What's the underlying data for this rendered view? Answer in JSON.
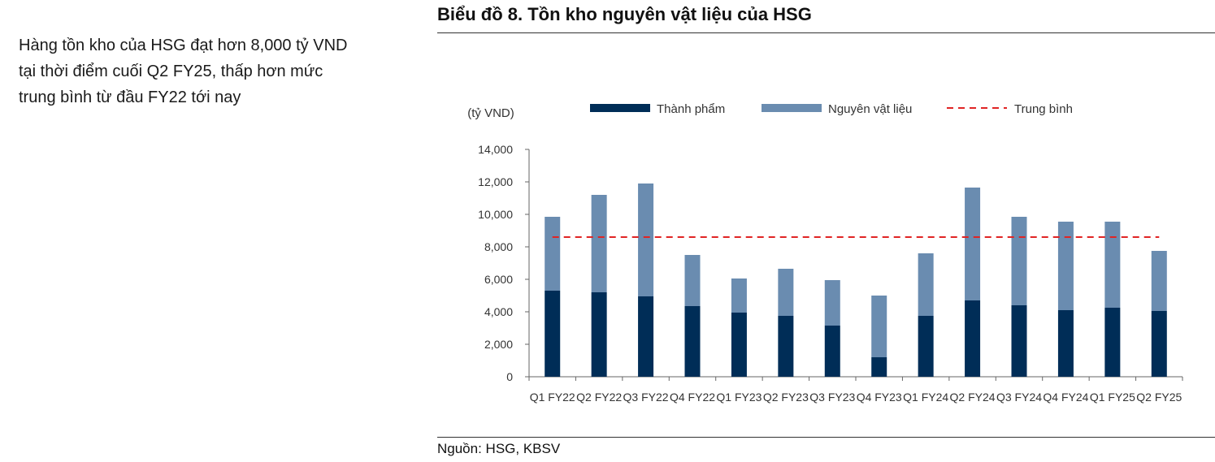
{
  "commentary": {
    "lines": [
      "Hàng tồn kho của HSG đạt hơn 8,000 tỷ VND",
      "tại thời điểm cuối Q2 FY25, thấp hơn mức",
      "trung bình từ đầu FY22 tới nay"
    ]
  },
  "chart_title": "Biểu đồ 8. Tồn kho nguyên vật liệu của HSG",
  "source": "Nguồn: HSG, KBSV",
  "chart_data": {
    "type": "bar",
    "stacked": true,
    "unit_label": "(tỷ VND)",
    "categories": [
      "Q1 FY22",
      "Q2 FY22",
      "Q3 FY22",
      "Q4 FY22",
      "Q1 FY23",
      "Q2 FY23",
      "Q3 FY23",
      "Q4 FY23",
      "Q1 FY24",
      "Q2 FY24",
      "Q3 FY24",
      "Q4 FY24",
      "Q1 FY25",
      "Q2 FY25"
    ],
    "series": [
      {
        "name": "Thành phẩm",
        "color": "#002d57",
        "values": [
          5300,
          5200,
          4950,
          4350,
          3950,
          3750,
          3150,
          1200,
          3750,
          4700,
          4400,
          4100,
          4250,
          4050
        ]
      },
      {
        "name": "Nguyên vật liệu",
        "color": "#6a8cb0",
        "values": [
          4550,
          6000,
          6950,
          3150,
          2100,
          2900,
          2800,
          3800,
          3850,
          6950,
          5450,
          5450,
          5300,
          3700
        ]
      }
    ],
    "average": {
      "name": "Trung bình",
      "value": 8600,
      "color": "#e02424"
    },
    "ylim": [
      0,
      14000
    ],
    "yticks": [
      0,
      2000,
      4000,
      6000,
      8000,
      10000,
      12000,
      14000
    ],
    "ytick_labels": [
      "0",
      "2,000",
      "4,000",
      "6,000",
      "8,000",
      "10,000",
      "12,000",
      "14,000"
    ],
    "legend_position": "top",
    "grid": false
  }
}
